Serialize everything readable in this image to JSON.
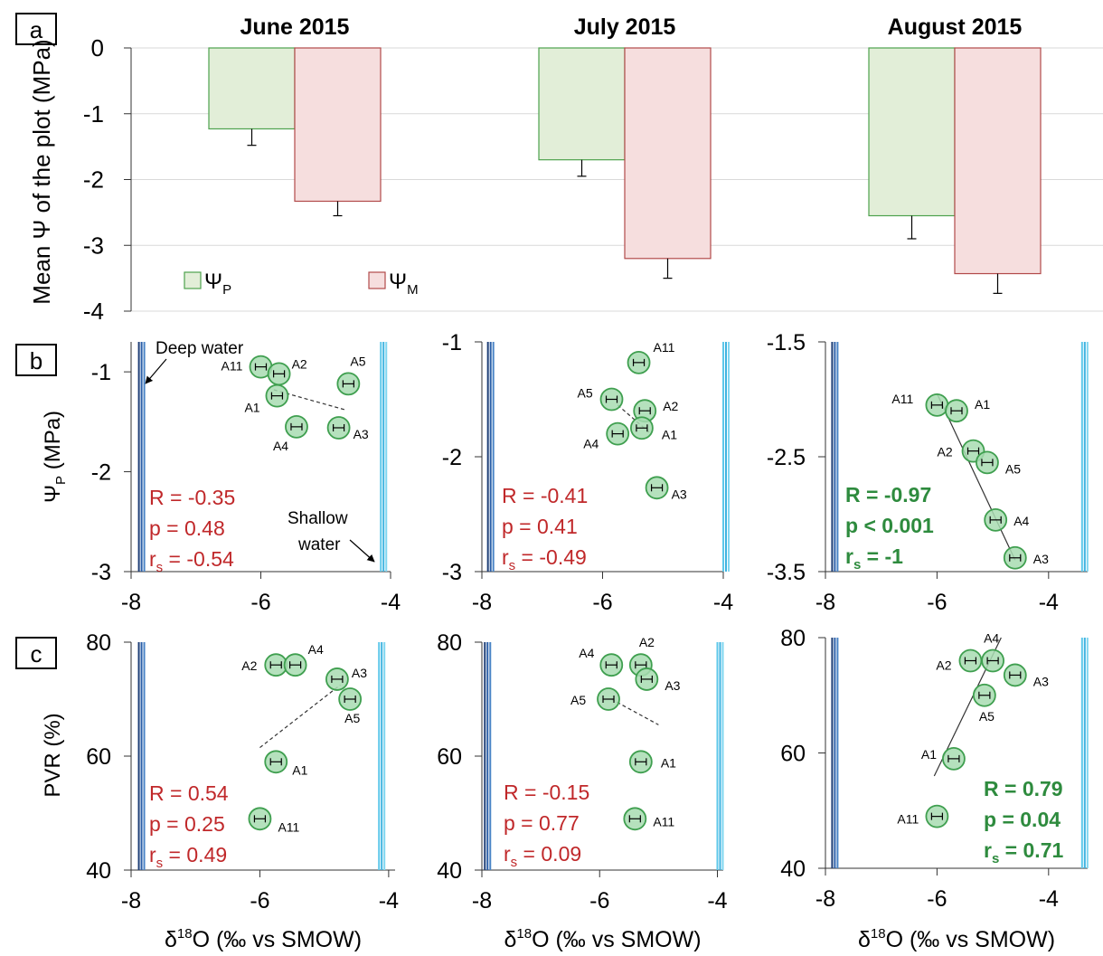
{
  "figure": {
    "panel_labels": [
      "a",
      "b",
      "c"
    ]
  },
  "chart_data": [
    {
      "id": "a",
      "type": "bar",
      "panel_label": "a",
      "ylabel": "Mean Ψ of the plot (MPa)",
      "ylim": [
        -4,
        0
      ],
      "yticks": [
        "0",
        "-1",
        "-2",
        "-3",
        "-4"
      ],
      "grid": true,
      "categories": [
        "June 2015",
        "July 2015",
        "August 2015"
      ],
      "series": [
        {
          "name": "ΨP",
          "values": [
            -1.23,
            -1.7,
            -2.55
          ],
          "errors": [
            0.25,
            0.25,
            0.35
          ],
          "color": "#e2eed8",
          "stroke": "#4ea24e"
        },
        {
          "name": "ΨM",
          "values": [
            -2.33,
            -3.2,
            -3.43
          ],
          "errors": [
            0.22,
            0.3,
            0.3
          ],
          "color": "#f6dede",
          "stroke": "#b24a4a"
        }
      ],
      "legend": [
        {
          "symbol": "Ψ",
          "sub": "P"
        },
        {
          "symbol": "Ψ",
          "sub": "M"
        }
      ],
      "legend_position": "bottom-left"
    },
    {
      "id": "b1",
      "type": "scatter",
      "panel_label": "b",
      "ylabel": "ΨP (MPa)",
      "ylim": [
        -3,
        -0.7
      ],
      "yticks": [
        "-1",
        "-2",
        "-3"
      ],
      "xlim": [
        -8,
        -4
      ],
      "xticks": [
        "-8",
        "-6",
        "-4"
      ],
      "deep_water_x": -7.88,
      "shallow_water_x": -4.15,
      "points": [
        {
          "label": "A11",
          "x": -6.0,
          "y": -0.95
        },
        {
          "label": "A2",
          "x": -5.72,
          "y": -1.02
        },
        {
          "label": "A1",
          "x": -5.75,
          "y": -1.24
        },
        {
          "label": "A5",
          "x": -4.65,
          "y": -1.12
        },
        {
          "label": "A4",
          "x": -5.45,
          "y": -1.55
        },
        {
          "label": "A3",
          "x": -4.8,
          "y": -1.56
        }
      ],
      "trend": {
        "style": "dashed",
        "from": [
          -5.8,
          -1.18
        ],
        "to": [
          -4.7,
          -1.38
        ]
      },
      "stats": [
        "R = -0.35",
        "p = 0.48",
        "r",
        "s",
        " = -0.54"
      ],
      "stats_color": "#c0282a",
      "annotations": [
        "Deep water",
        "Shallow",
        "water"
      ]
    },
    {
      "id": "b2",
      "type": "scatter",
      "ylim": [
        -3,
        -1
      ],
      "yticks": [
        "-1",
        "-2",
        "-3"
      ],
      "xlim": [
        -8,
        -4
      ],
      "xticks": [
        "-8",
        "-6",
        "-4"
      ],
      "deep_water_x": -7.9,
      "shallow_water_x": -4.0,
      "points": [
        {
          "label": "A11",
          "x": -5.4,
          "y": -1.18
        },
        {
          "label": "A5",
          "x": -5.85,
          "y": -1.5
        },
        {
          "label": "A2",
          "x": -5.3,
          "y": -1.6
        },
        {
          "label": "A1",
          "x": -5.35,
          "y": -1.75
        },
        {
          "label": "A4",
          "x": -5.75,
          "y": -1.8
        },
        {
          "label": "A3",
          "x": -5.1,
          "y": -2.27
        }
      ],
      "trend": {
        "style": "dashed",
        "from": [
          -5.75,
          -1.55
        ],
        "to": [
          -5.2,
          -1.8
        ]
      },
      "stats": [
        "R = -0.41",
        "p = 0.41",
        "r",
        "s",
        " = -0.49"
      ],
      "stats_color": "#c0282a"
    },
    {
      "id": "b3",
      "type": "scatter",
      "ylim": [
        -3.5,
        -1.5
      ],
      "yticks": [
        "-1.5",
        "-2.5",
        "-3.5"
      ],
      "xlim": [
        -8,
        -3.3
      ],
      "xticks": [
        "-8",
        "-6",
        "-4"
      ],
      "deep_water_x": -7.88,
      "shallow_water_x": -3.4,
      "points": [
        {
          "label": "A11",
          "x": -6.0,
          "y": -2.05
        },
        {
          "label": "A1",
          "x": -5.65,
          "y": -2.1
        },
        {
          "label": "A2",
          "x": -5.35,
          "y": -2.45
        },
        {
          "label": "A5",
          "x": -5.1,
          "y": -2.55
        },
        {
          "label": "A4",
          "x": -4.95,
          "y": -3.05
        },
        {
          "label": "A3",
          "x": -4.6,
          "y": -3.38
        }
      ],
      "trend": {
        "style": "solid",
        "from": [
          -6.0,
          -1.95
        ],
        "to": [
          -4.6,
          -3.4
        ]
      },
      "stats": [
        "R = -0.97",
        "p < 0.001",
        "r",
        "s",
        " = -1"
      ],
      "stats_color": "#2e8b3e"
    },
    {
      "id": "c1",
      "type": "scatter",
      "panel_label": "c",
      "ylabel": "PVR (%)",
      "ylim": [
        40,
        80
      ],
      "yticks": [
        "80",
        "60",
        "40"
      ],
      "xlim": [
        -8,
        -3.9
      ],
      "xticks": [
        "-8",
        "-6",
        "-4"
      ],
      "xlabel": [
        "δ",
        "18",
        "O (‰ vs SMOW)"
      ],
      "deep_water_x": -7.88,
      "shallow_water_x": -4.15,
      "points": [
        {
          "label": "A2",
          "x": -5.75,
          "y": 76
        },
        {
          "label": "A4",
          "x": -5.45,
          "y": 76
        },
        {
          "label": "A3",
          "x": -4.8,
          "y": 73.5
        },
        {
          "label": "A5",
          "x": -4.6,
          "y": 70
        },
        {
          "label": "A1",
          "x": -5.75,
          "y": 59
        },
        {
          "label": "A11",
          "x": -6.0,
          "y": 49
        }
      ],
      "trend": {
        "style": "dashed",
        "from": [
          -6.0,
          61.5
        ],
        "to": [
          -4.75,
          72.5
        ]
      },
      "stats": [
        "R = 0.54",
        "p = 0.25",
        "r",
        "s",
        " = 0.49"
      ],
      "stats_color": "#c0282a"
    },
    {
      "id": "c2",
      "type": "scatter",
      "ylim": [
        40,
        80
      ],
      "yticks": [
        "80",
        "60",
        "40"
      ],
      "xlim": [
        -8,
        -3.9
      ],
      "xticks": [
        "-8",
        "-6",
        "-4"
      ],
      "xlabel": [
        "δ",
        "18",
        "O (‰ vs SMOW)"
      ],
      "deep_water_x": -7.95,
      "shallow_water_x": -4.0,
      "points": [
        {
          "label": "A4",
          "x": -5.8,
          "y": 76
        },
        {
          "label": "A2",
          "x": -5.3,
          "y": 76
        },
        {
          "label": "A3",
          "x": -5.2,
          "y": 73.5
        },
        {
          "label": "A5",
          "x": -5.85,
          "y": 70
        },
        {
          "label": "A1",
          "x": -5.3,
          "y": 59
        },
        {
          "label": "A11",
          "x": -5.4,
          "y": 49
        }
      ],
      "trend": {
        "style": "dashed",
        "from": [
          -5.8,
          70
        ],
        "to": [
          -5.0,
          65.5
        ]
      },
      "stats": [
        "R = -0.15",
        "p = 0.77",
        "r",
        "s",
        " = 0.09"
      ],
      "stats_color": "#c0282a"
    },
    {
      "id": "c3",
      "type": "scatter",
      "ylim": [
        40,
        80
      ],
      "yticks": [
        "80",
        "60",
        "40"
      ],
      "xlim": [
        -8,
        -3.3
      ],
      "xticks": [
        "-8",
        "-6",
        "-4"
      ],
      "xlabel": [
        "δ",
        "18",
        "O (‰ vs SMOW)"
      ],
      "deep_water_x": -7.88,
      "shallow_water_x": -3.4,
      "points": [
        {
          "label": "A4",
          "x": -5.0,
          "y": 76
        },
        {
          "label": "A2",
          "x": -5.4,
          "y": 76
        },
        {
          "label": "A3",
          "x": -4.6,
          "y": 73.5
        },
        {
          "label": "A5",
          "x": -5.15,
          "y": 70
        },
        {
          "label": "A1",
          "x": -5.7,
          "y": 59
        },
        {
          "label": "A11",
          "x": -6.0,
          "y": 49
        }
      ],
      "trend": {
        "style": "solid",
        "from": [
          -6.05,
          56
        ],
        "to": [
          -4.85,
          80
        ]
      },
      "stats": [
        "R = 0.79",
        "p = 0.04",
        "r",
        "s",
        " = 0.71"
      ],
      "stats_color": "#2e8b3e"
    }
  ]
}
